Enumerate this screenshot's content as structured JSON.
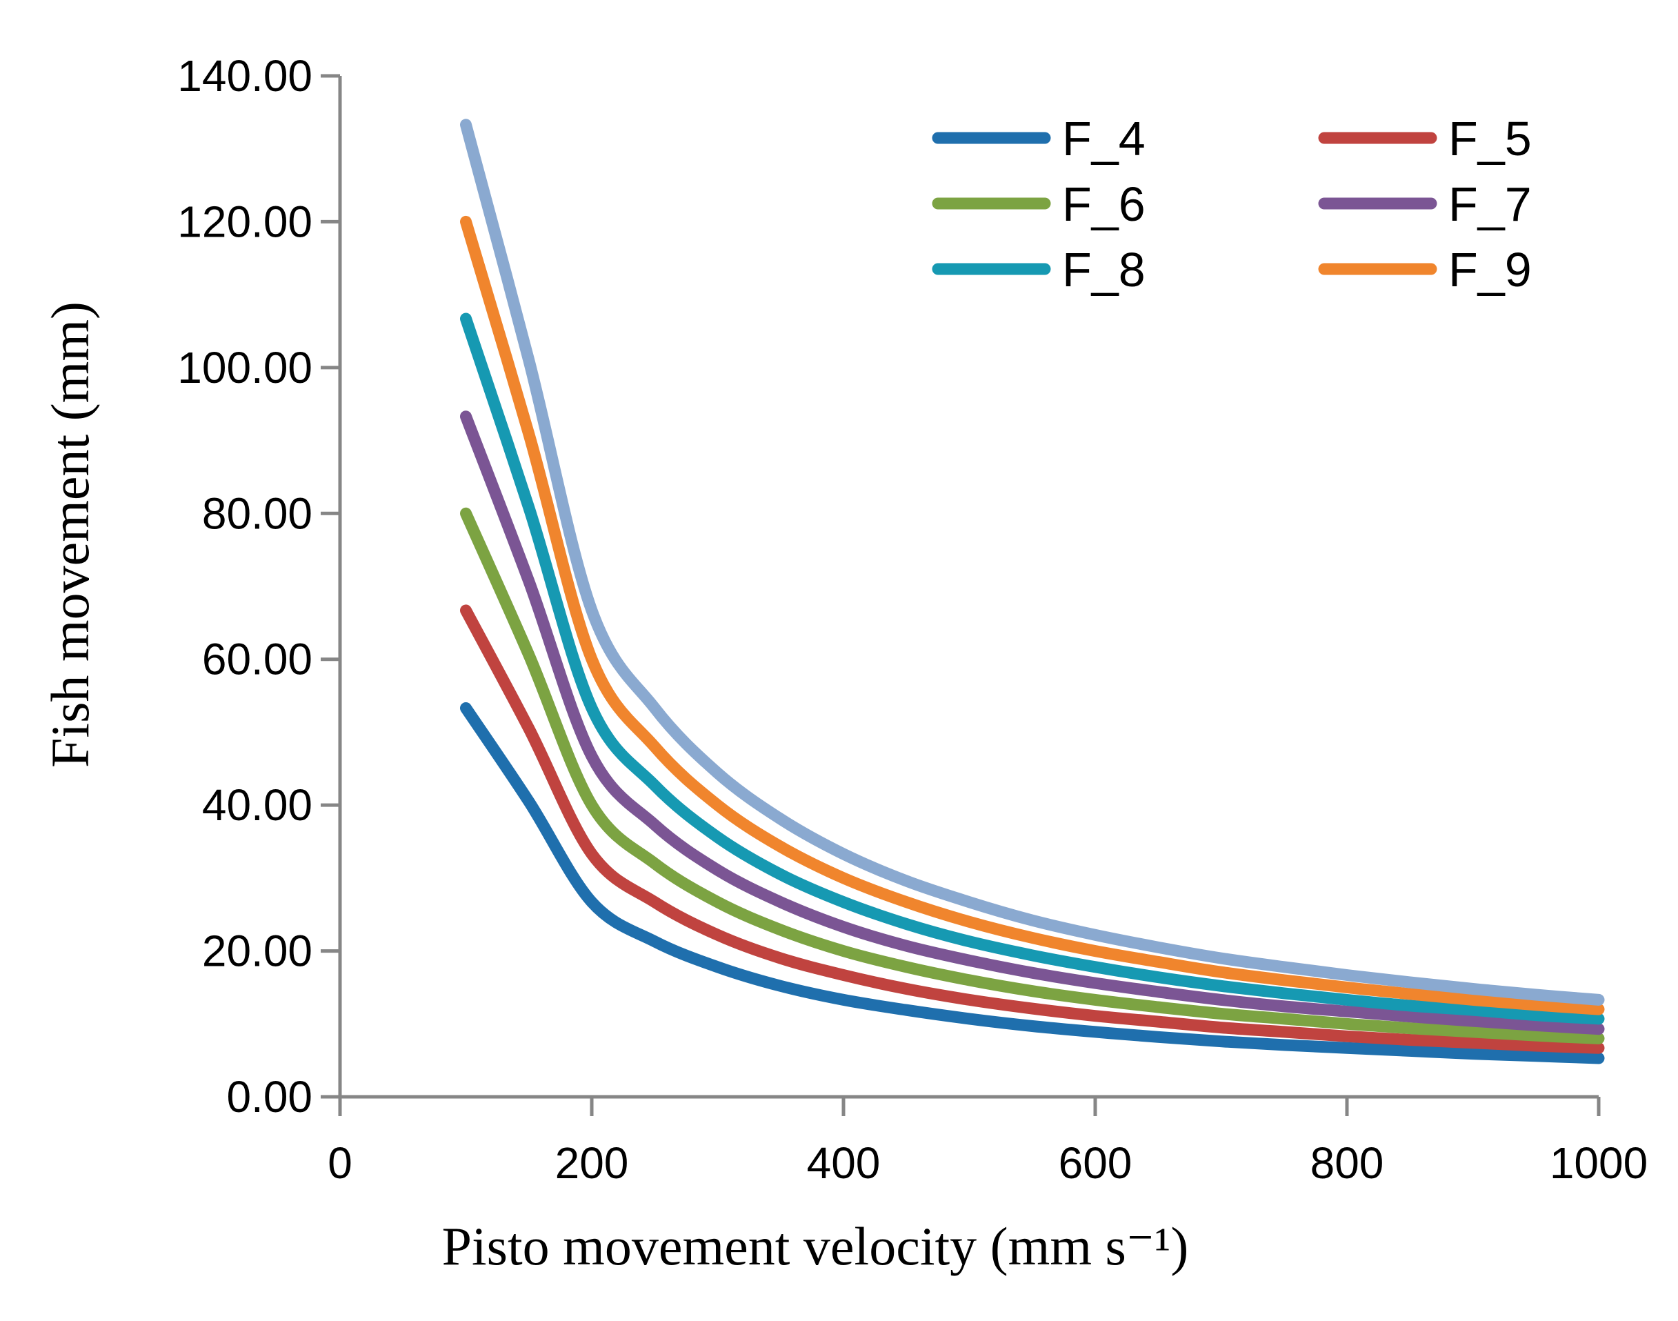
{
  "chart_data": {
    "type": "line",
    "xlabel": "Pisto movement velocity (mm s⁻¹)",
    "ylabel": "Fish movement (mm)",
    "xlim": [
      0,
      1000
    ],
    "ylim": [
      0,
      140
    ],
    "x_ticks": [
      0,
      200,
      400,
      600,
      800,
      1000
    ],
    "x_tick_labels": [
      "0",
      "200",
      "400",
      "600",
      "800",
      "1000"
    ],
    "y_ticks": [
      0,
      20,
      40,
      60,
      80,
      100,
      120,
      140
    ],
    "y_tick_labels": [
      "0.00",
      "20.00",
      "40.00",
      "60.00",
      "80.00",
      "100.00",
      "120.00",
      "140.00"
    ],
    "grid": false,
    "legend_position": "top-right",
    "x": [
      100,
      150,
      200,
      250,
      300,
      350,
      400,
      450,
      500,
      550,
      600,
      650,
      700,
      750,
      800,
      850,
      900,
      950,
      1000
    ],
    "series": [
      {
        "name": "F_4",
        "color": "#1f6fad",
        "values": [
          53.3,
          40.5,
          26.7,
          21.3,
          17.8,
          15.2,
          13.3,
          11.9,
          10.7,
          9.7,
          8.9,
          8.2,
          7.6,
          7.1,
          6.7,
          6.3,
          5.9,
          5.6,
          5.3
        ]
      },
      {
        "name": "F_5",
        "color": "#c0433f",
        "values": [
          66.7,
          50.5,
          33.3,
          26.7,
          22.2,
          19.0,
          16.7,
          14.8,
          13.3,
          12.1,
          11.1,
          10.3,
          9.5,
          8.9,
          8.3,
          7.8,
          7.4,
          7.0,
          6.7
        ]
      },
      {
        "name": "F_6",
        "color": "#7ca342",
        "values": [
          80.0,
          60.6,
          40.0,
          32.0,
          26.7,
          22.9,
          20.0,
          17.8,
          16.0,
          14.5,
          13.3,
          12.3,
          11.4,
          10.7,
          10.0,
          9.4,
          8.9,
          8.4,
          8.0
        ]
      },
      {
        "name": "F_7",
        "color": "#7b5594",
        "values": [
          93.3,
          70.7,
          46.7,
          37.3,
          31.1,
          26.7,
          23.3,
          20.7,
          18.7,
          17.0,
          15.6,
          14.4,
          13.3,
          12.4,
          11.7,
          11.0,
          10.4,
          9.8,
          9.3
        ]
      },
      {
        "name": "F_8",
        "color": "#1699b2",
        "values": [
          106.7,
          80.8,
          53.3,
          42.7,
          35.6,
          30.5,
          26.7,
          23.7,
          21.3,
          19.4,
          17.8,
          16.4,
          15.2,
          14.2,
          13.3,
          12.5,
          11.9,
          11.2,
          10.7
        ]
      },
      {
        "name": "F_9",
        "color": "#f0852d",
        "values": [
          120.0,
          90.9,
          60.0,
          48.0,
          40.0,
          34.3,
          30.0,
          26.7,
          24.0,
          21.8,
          20.0,
          18.5,
          17.1,
          16.0,
          15.0,
          14.1,
          13.3,
          12.6,
          12.0
        ]
      },
      {
        "color": "#8aa9d0",
        "values": [
          133.3,
          101.0,
          66.7,
          53.3,
          44.4,
          38.1,
          33.3,
          29.6,
          26.7,
          24.2,
          22.2,
          20.5,
          19.0,
          17.8,
          16.7,
          15.7,
          14.8,
          14.0,
          13.3
        ]
      }
    ]
  }
}
